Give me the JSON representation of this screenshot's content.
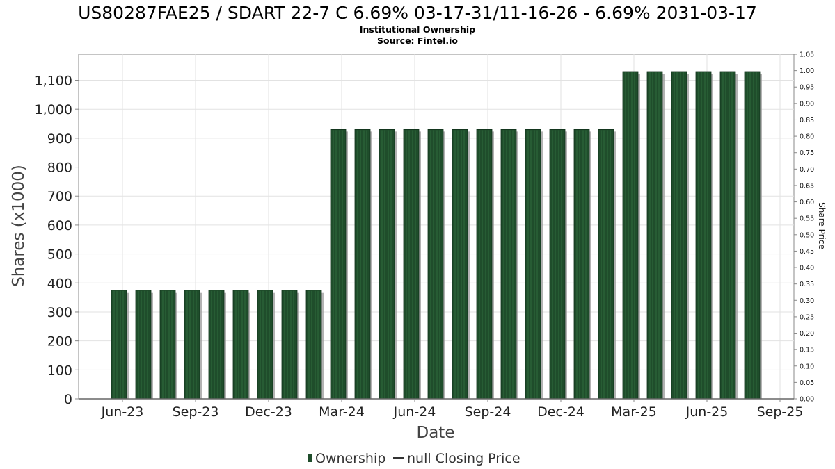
{
  "chart_data": {
    "type": "bar",
    "title": "US80287FAE25 / SDART 22-7 C 6.69% 03-17-31/11-16-26 - 6.69% 2031-03-17",
    "subtitle_lines": [
      "Institutional Ownership",
      "Source: Fintel.io"
    ],
    "xlabel": "Date",
    "ylabel": "Shares (x1000)",
    "y2label": "Share Price",
    "x_tick_labels": [
      "Jun-23",
      "Sep-23",
      "Dec-23",
      "Mar-24",
      "Jun-24",
      "Sep-24",
      "Dec-24",
      "Mar-25",
      "Jun-25",
      "Sep-25"
    ],
    "y_ticks": [
      "0",
      "100",
      "200",
      "300",
      "400",
      "500",
      "600",
      "700",
      "800",
      "900",
      "1,000",
      "1,100"
    ],
    "y2_ticks": [
      "0.00",
      "0.05",
      "0.10",
      "0.15",
      "0.20",
      "0.25",
      "0.30",
      "0.35",
      "0.40",
      "0.45",
      "0.50",
      "0.55",
      "0.60",
      "0.65",
      "0.70",
      "0.75",
      "0.80",
      "0.85",
      "0.90",
      "0.95",
      "1.00",
      "1.05"
    ],
    "ylim": [
      0,
      1190
    ],
    "y2lim": [
      0,
      1.05
    ],
    "grid": true,
    "legend_position": "bottom-center",
    "series": [
      {
        "name": "Ownership",
        "color": "#1f4d2b",
        "values": [
          375,
          375,
          375,
          375,
          375,
          375,
          375,
          375,
          375,
          930,
          930,
          930,
          930,
          930,
          930,
          930,
          930,
          930,
          930,
          930,
          930,
          1130,
          1130,
          1130,
          1130,
          1130,
          1130
        ]
      },
      {
        "name": "null Closing Price",
        "color": "#333333",
        "values": []
      }
    ]
  }
}
